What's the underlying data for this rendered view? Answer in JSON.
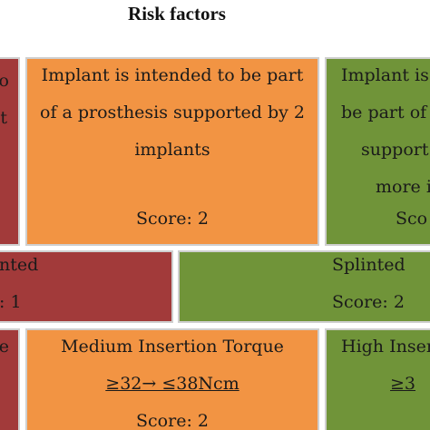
{
  "title": "Risk factors",
  "colors": {
    "red": "#a23a3a",
    "orange": "#f29443",
    "green": "#709439"
  },
  "row1": {
    "left": {
      "lines": [
        "o",
        "t"
      ]
    },
    "center": {
      "lines": [
        "Implant is intended to be part",
        "of a prosthesis supported by 2",
        "implants"
      ],
      "score": "Score: 2"
    },
    "right": {
      "lines": [
        "Implant is",
        "be part of",
        "support",
        "more i"
      ],
      "score": "Sco"
    }
  },
  "row2": {
    "left": {
      "label": "nted",
      "score": ": 1"
    },
    "right": {
      "label": "Splinted",
      "score": "Score: 2"
    }
  },
  "row3": {
    "left": {
      "label": "e"
    },
    "center": {
      "label": "Medium Insertion Torque",
      "range": "≥32→ ≤38Ncm",
      "score": "Score: 2"
    },
    "right": {
      "label": "High Inser",
      "range": "≥3"
    }
  }
}
